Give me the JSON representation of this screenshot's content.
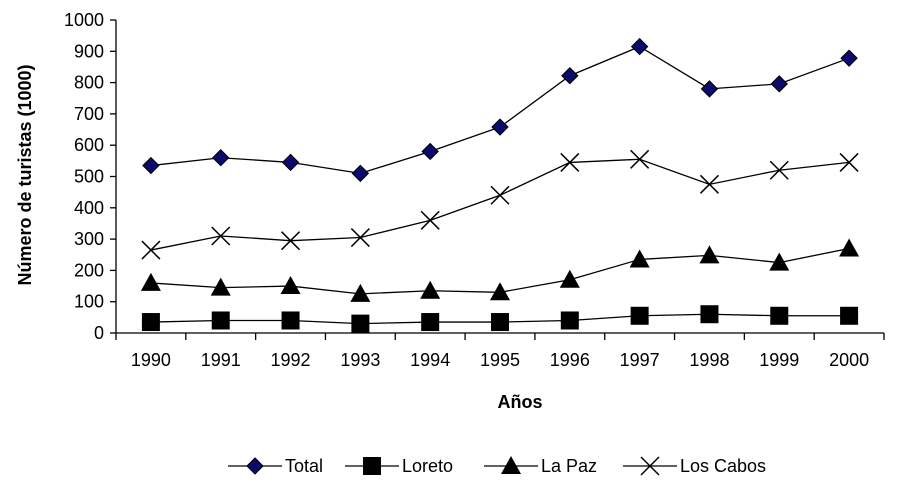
{
  "chart_data": {
    "type": "line",
    "xlabel": "Años",
    "ylabel": "Número de turistas (1000)",
    "categories": [
      "1990",
      "1991",
      "1992",
      "1993",
      "1994",
      "1995",
      "1996",
      "1997",
      "1998",
      "1999",
      "2000"
    ],
    "ylim": [
      0,
      1000
    ],
    "yticks": [
      0,
      100,
      200,
      300,
      400,
      500,
      600,
      700,
      800,
      900,
      1000
    ],
    "grid": false,
    "legend_position": "bottom",
    "series": [
      {
        "name": "Total",
        "marker": "diamond",
        "values": [
          535,
          560,
          545,
          510,
          580,
          658,
          822,
          915,
          780,
          796,
          878
        ]
      },
      {
        "name": "Loreto",
        "marker": "square",
        "values": [
          35,
          40,
          40,
          30,
          35,
          35,
          40,
          55,
          60,
          55,
          55
        ]
      },
      {
        "name": "La Paz",
        "marker": "triangle",
        "values": [
          160,
          145,
          150,
          125,
          135,
          130,
          170,
          235,
          248,
          225,
          270
        ]
      },
      {
        "name": "Los Cabos",
        "marker": "x",
        "values": [
          265,
          310,
          295,
          305,
          360,
          440,
          545,
          555,
          475,
          520,
          545
        ]
      }
    ]
  },
  "style": {
    "line_color": "#000000",
    "diamond_fill": "#0b0b6b"
  }
}
